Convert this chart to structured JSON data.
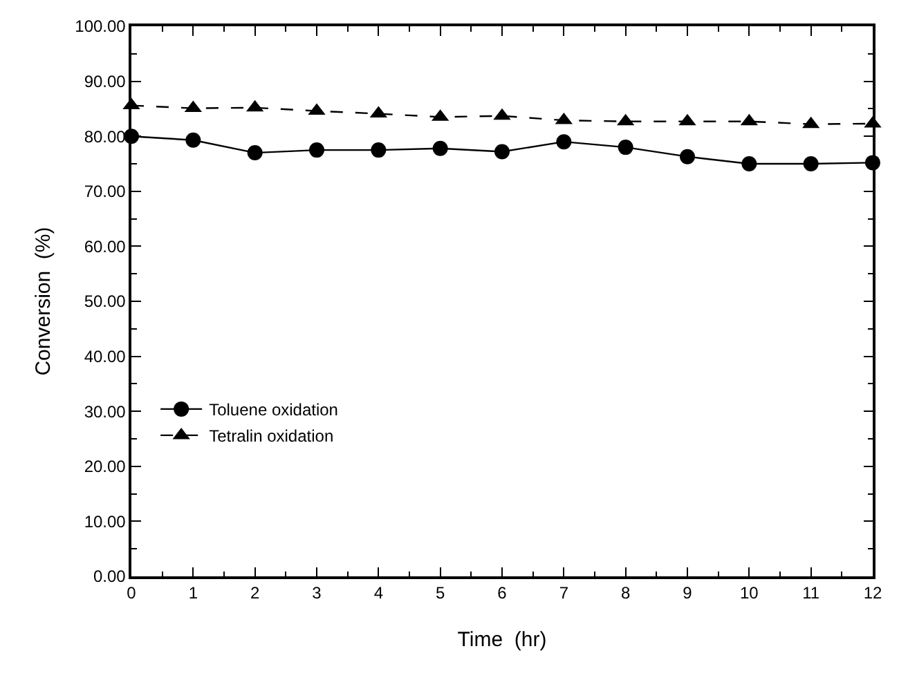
{
  "chart_data": {
    "type": "line",
    "xlabel": "Time  (hr)",
    "ylabel": "Conversion  (%)",
    "x": [
      0,
      1,
      2,
      3,
      4,
      5,
      6,
      7,
      8,
      9,
      10,
      11,
      12
    ],
    "series": [
      {
        "name": "Toluene oxidation",
        "color": "#000000",
        "marker": "circle",
        "line_style": "solid",
        "values": [
          80,
          79.3,
          77,
          77.5,
          77.5,
          77.8,
          77.2,
          79,
          78,
          76.3,
          75,
          75,
          75.2
        ]
      },
      {
        "name": "Tetralin oxidation",
        "color": "#000000",
        "marker": "triangle",
        "line_style": "dashed",
        "values": [
          85.6,
          85.1,
          85.2,
          84.6,
          84.1,
          83.5,
          83.7,
          82.9,
          82.7,
          82.7,
          82.7,
          82.2,
          82.3
        ]
      }
    ],
    "xlim": [
      0,
      12
    ],
    "xticks": [
      0,
      1,
      2,
      3,
      4,
      5,
      6,
      7,
      8,
      9,
      10,
      11,
      12
    ],
    "ylim": [
      0,
      100
    ],
    "yticks": [
      {
        "value": 0,
        "label": "0.00"
      },
      {
        "value": 10,
        "label": "10.00"
      },
      {
        "value": 20,
        "label": "20.00"
      },
      {
        "value": 30,
        "label": "30.00"
      },
      {
        "value": 40,
        "label": "40.00"
      },
      {
        "value": 50,
        "label": "50.00"
      },
      {
        "value": 60,
        "label": "60.00"
      },
      {
        "value": 70,
        "label": "70.00"
      },
      {
        "value": 80,
        "label": "80.00"
      },
      {
        "value": 90,
        "label": "90.00"
      },
      {
        "value": 100,
        "label": "100.00"
      }
    ],
    "legend": "bottom left"
  }
}
